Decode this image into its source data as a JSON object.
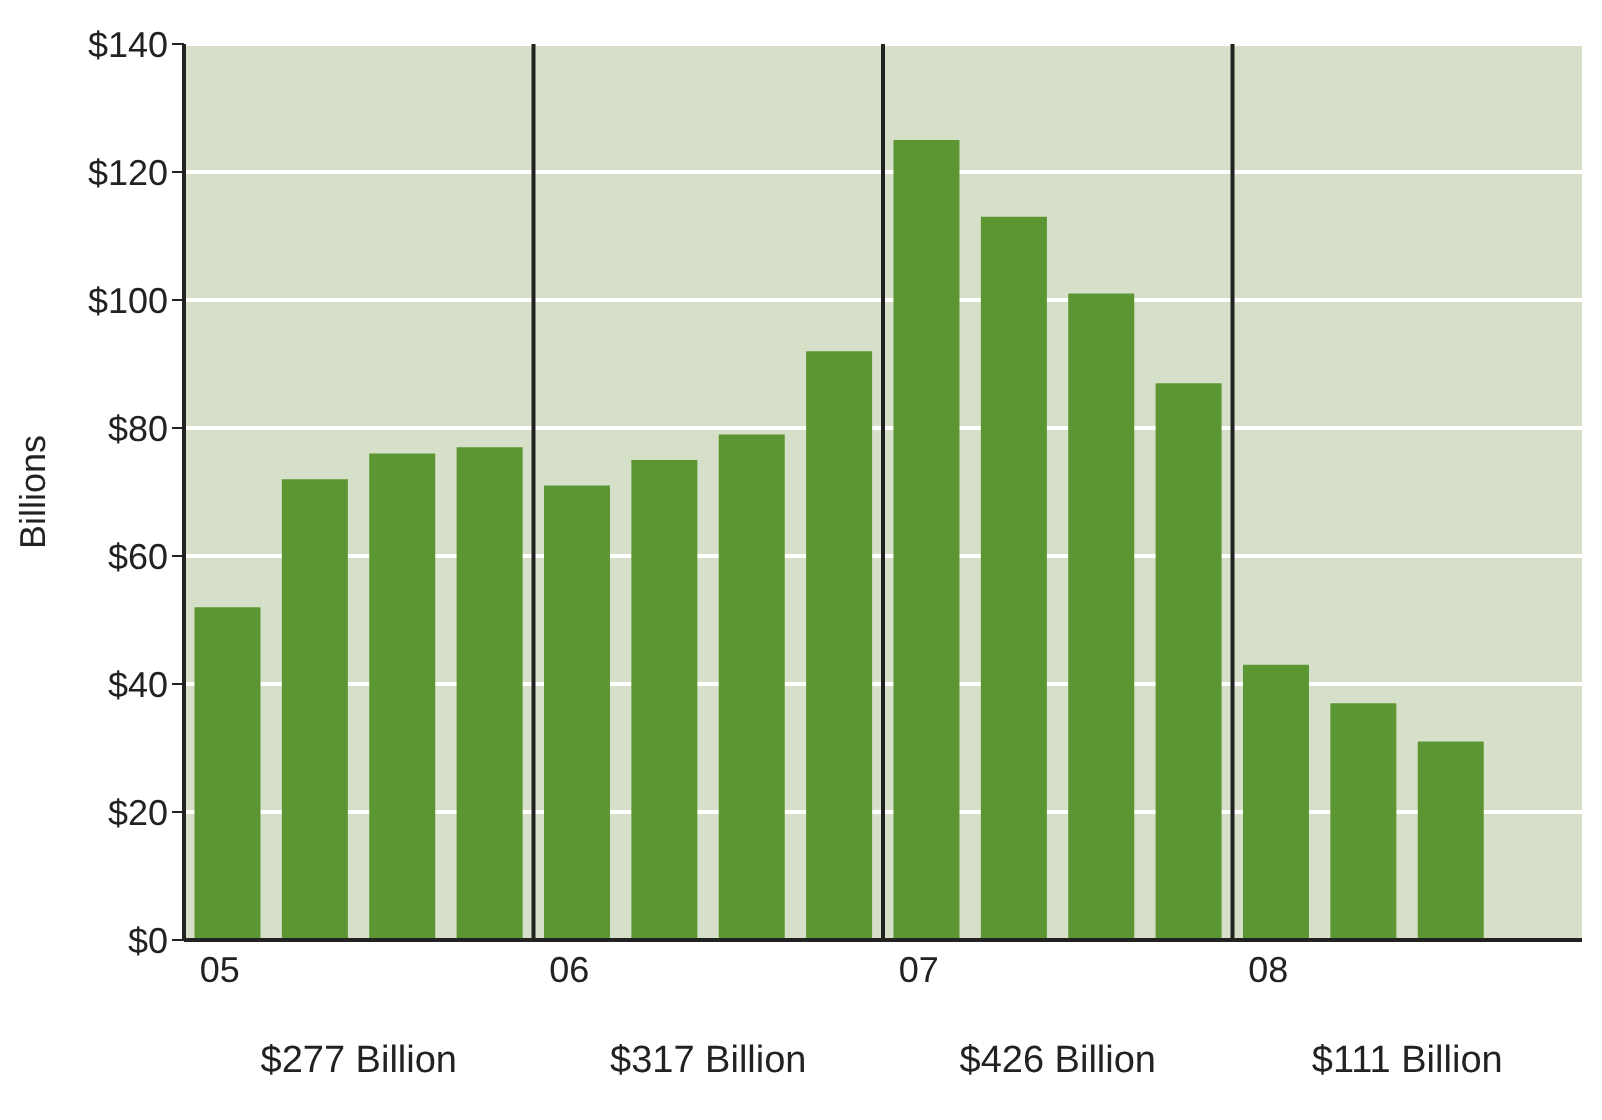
{
  "chart_data": {
    "type": "bar",
    "ylabel": "Billions",
    "categories": [
      "05",
      null,
      null,
      null,
      "06",
      null,
      null,
      null,
      "07",
      null,
      null,
      null,
      "08",
      null,
      null,
      null
    ],
    "values": [
      52,
      72,
      76,
      77,
      71,
      75,
      79,
      92,
      125,
      113,
      101,
      87,
      43,
      37,
      31,
      null
    ],
    "color": "#5c9632",
    "ylim": [
      0,
      140
    ],
    "yticks": [
      {
        "value": 0,
        "label": "$0"
      },
      {
        "value": 20,
        "label": "$20"
      },
      {
        "value": 40,
        "label": "$40"
      },
      {
        "value": 60,
        "label": "$60"
      },
      {
        "value": 80,
        "label": "$80"
      },
      {
        "value": 100,
        "label": "$100"
      },
      {
        "value": 120,
        "label": "$120"
      },
      {
        "value": 140,
        "label": "$140"
      }
    ],
    "grid": "y",
    "annotations": [
      "$277 Billion",
      "$317 Billion",
      "$426 Billion",
      "$111 Billion"
    ]
  }
}
